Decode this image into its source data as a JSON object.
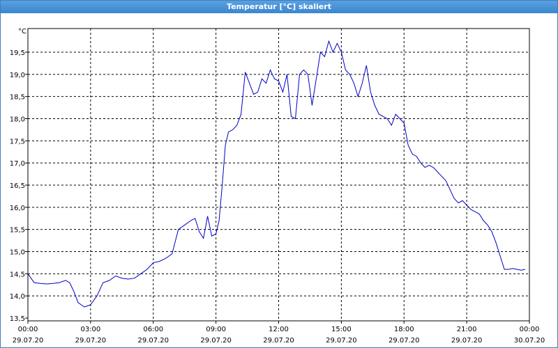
{
  "window": {
    "title": "Temperatur [°C] skaliert"
  },
  "colors": {
    "titlebar": "#3b86cf",
    "line": "#0000c8",
    "grid": "#000000"
  },
  "chart_data": {
    "type": "line",
    "title": "Temperatur [°C] skaliert",
    "ylabel": "°C",
    "xlabel": "",
    "ylim": [
      13.5,
      20.0
    ],
    "yticks": [
      "13,5",
      "14,0",
      "14,5",
      "15,0",
      "15,5",
      "16,0",
      "16,5",
      "17,0",
      "17,5",
      "18,0",
      "18,5",
      "19,0",
      "19,5"
    ],
    "xlim_hours": [
      0,
      24
    ],
    "xticks": [
      {
        "time": "00:00",
        "date": "29.07.20"
      },
      {
        "time": "03:00",
        "date": "29.07.20"
      },
      {
        "time": "06:00",
        "date": "29.07.20"
      },
      {
        "time": "09:00",
        "date": "29.07.20"
      },
      {
        "time": "12:00",
        "date": "29.07.20"
      },
      {
        "time": "15:00",
        "date": "29.07.20"
      },
      {
        "time": "18:00",
        "date": "29.07.20"
      },
      {
        "time": "21:00",
        "date": "29.07.20"
      },
      {
        "time": "00:00",
        "date": "30.07.20"
      }
    ],
    "grid": true,
    "series": [
      {
        "x_hours": [
          0.0,
          0.3,
          0.6,
          0.9,
          1.2,
          1.5,
          1.8,
          2.0,
          2.2,
          2.4,
          2.7,
          3.0,
          3.3,
          3.6,
          3.9,
          4.2,
          4.5,
          4.8,
          5.1,
          5.4,
          5.7,
          6.0,
          6.3,
          6.6,
          6.9,
          7.2,
          7.5,
          7.8,
          8.0,
          8.2,
          8.4,
          8.6,
          8.8,
          9.0,
          9.15,
          9.3,
          9.45,
          9.6,
          9.8,
          10.0,
          10.2,
          10.4,
          10.6,
          10.8,
          11.0,
          11.2,
          11.4,
          11.6,
          11.8,
          12.0,
          12.2,
          12.4,
          12.6,
          12.8,
          13.0,
          13.2,
          13.4,
          13.6,
          13.8,
          14.0,
          14.2,
          14.4,
          14.6,
          14.8,
          15.0,
          15.2,
          15.4,
          15.6,
          15.8,
          16.0,
          16.2,
          16.4,
          16.6,
          16.8,
          17.0,
          17.2,
          17.4,
          17.6,
          17.8,
          18.0,
          18.2,
          18.4,
          18.6,
          18.8,
          19.0,
          19.2,
          19.4,
          19.6,
          19.8,
          20.0,
          20.2,
          20.4,
          20.6,
          20.8,
          21.0,
          21.2,
          21.4,
          21.6,
          21.8,
          22.0,
          22.2,
          22.4,
          22.6,
          22.8,
          23.0,
          23.2,
          23.4,
          23.6,
          23.8
        ],
        "y": [
          14.5,
          14.3,
          14.28,
          14.27,
          14.28,
          14.3,
          14.35,
          14.3,
          14.1,
          13.85,
          13.75,
          13.8,
          14.0,
          14.3,
          14.35,
          14.45,
          14.4,
          14.38,
          14.4,
          14.5,
          14.6,
          14.75,
          14.78,
          14.85,
          14.95,
          15.5,
          15.6,
          15.7,
          15.75,
          15.45,
          15.3,
          15.8,
          15.35,
          15.4,
          15.7,
          16.5,
          17.4,
          17.7,
          17.75,
          17.85,
          18.1,
          19.05,
          18.8,
          18.55,
          18.6,
          18.9,
          18.8,
          19.1,
          18.9,
          18.85,
          18.6,
          19.0,
          18.05,
          18.0,
          19.0,
          19.1,
          19.0,
          18.3,
          18.9,
          19.5,
          19.4,
          19.75,
          19.5,
          19.7,
          19.5,
          19.1,
          19.0,
          18.8,
          18.5,
          18.8,
          19.2,
          18.6,
          18.3,
          18.1,
          18.05,
          18.0,
          17.85,
          18.1,
          18.0,
          17.9,
          17.4,
          17.2,
          17.15,
          17.0,
          16.9,
          16.95,
          16.9,
          16.8,
          16.7,
          16.6,
          16.4,
          16.2,
          16.1,
          16.15,
          16.05,
          15.95,
          15.9,
          15.85,
          15.7,
          15.6,
          15.45,
          15.2,
          14.9,
          14.6,
          14.6,
          14.62,
          14.6,
          14.58,
          14.6
        ],
        "color": "#0000c8"
      }
    ]
  }
}
